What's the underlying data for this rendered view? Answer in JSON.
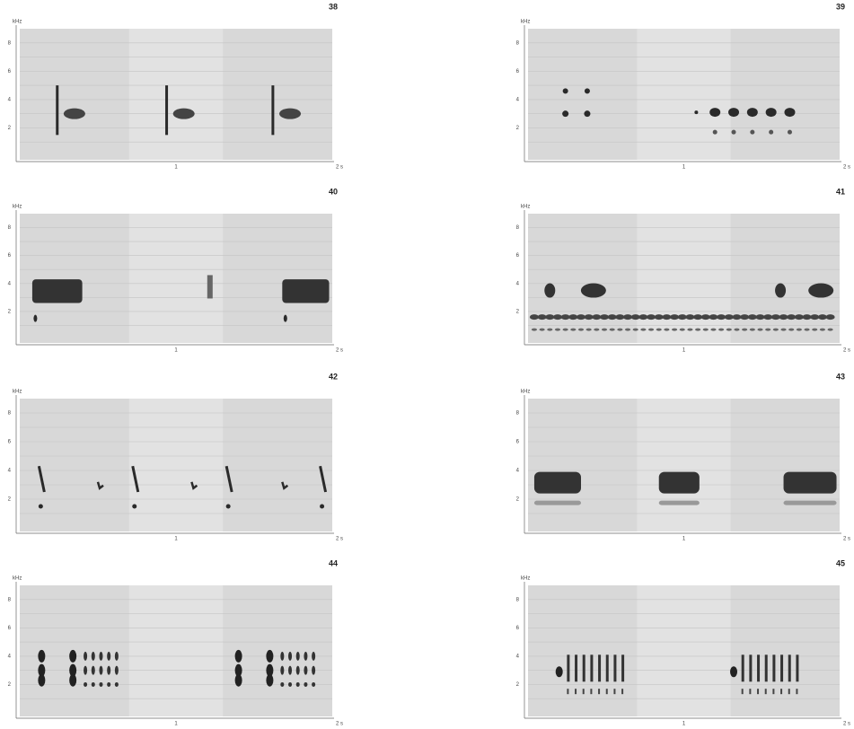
{
  "figures": [
    {
      "label": "38"
    },
    {
      "label": "39"
    },
    {
      "label": "40"
    },
    {
      "label": "41"
    },
    {
      "label": "42"
    },
    {
      "label": "43"
    },
    {
      "label": "44"
    },
    {
      "label": "45"
    }
  ],
  "axis": {
    "unit": "kHz",
    "y_labels": [
      "8",
      "6",
      "4",
      "2"
    ],
    "x_labels": [
      "1",
      "2 s"
    ]
  }
}
